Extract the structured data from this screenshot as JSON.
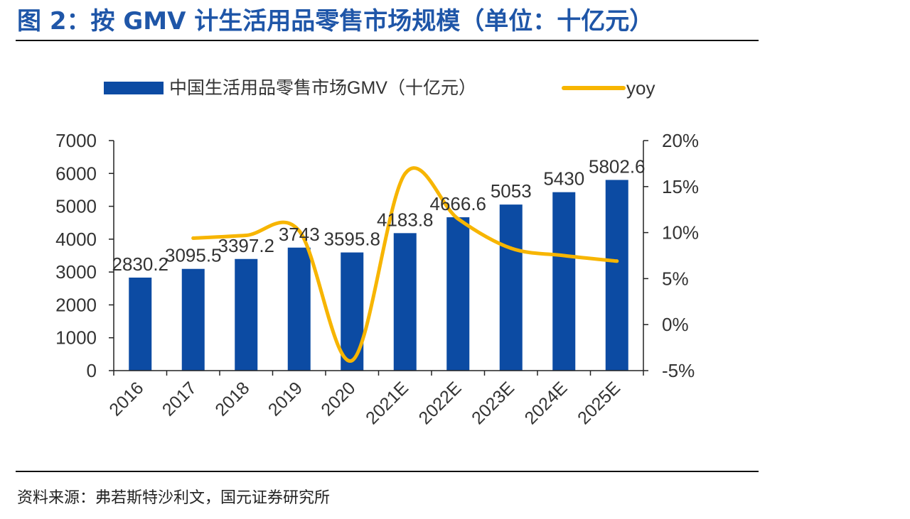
{
  "figure": {
    "title": "图 2：按 GMV 计生活用品零售市场规模（单位：十亿元）",
    "source": "资料来源：弗若斯特沙利文，国元证券研究所"
  },
  "colors": {
    "title": "#1f56a8",
    "bar": "#0c4ba3",
    "line": "#f7b500",
    "axis": "#222222"
  },
  "chart_data": {
    "type": "bar",
    "categories": [
      "2016",
      "2017",
      "2018",
      "2019",
      "2020",
      "2021E",
      "2022E",
      "2023E",
      "2024E",
      "2025E"
    ],
    "series": [
      {
        "name": "中国生活用品零售市场GMV（十亿元）",
        "type": "bar",
        "axis": "left",
        "values": [
          2830.2,
          3095.5,
          3397.2,
          3743,
          3595.8,
          4183.8,
          4666.6,
          5053,
          5430,
          5802.6
        ],
        "labels": [
          "2830.2",
          "3095.5",
          "3397.2",
          "3743",
          "3595.8",
          "4183.8",
          "4666.6",
          "5053",
          "5430",
          "5802.6"
        ]
      },
      {
        "name": "yoy",
        "type": "line",
        "axis": "right",
        "values": [
          null,
          9.4,
          9.7,
          10.2,
          -3.9,
          16.4,
          11.5,
          8.3,
          7.5,
          6.9
        ]
      }
    ],
    "y_left": {
      "min": 0,
      "max": 7000,
      "ticks": [
        0,
        1000,
        2000,
        3000,
        4000,
        5000,
        6000,
        7000
      ],
      "tick_labels": [
        "0",
        "1000",
        "2000",
        "3000",
        "4000",
        "5000",
        "6000",
        "7000"
      ]
    },
    "y_right": {
      "min": -5,
      "max": 20,
      "ticks": [
        -5,
        0,
        5,
        10,
        15,
        20
      ],
      "tick_labels": [
        "-5%",
        "0%",
        "5%",
        "10%",
        "15%",
        "20%"
      ]
    },
    "legend_position": "top",
    "grid": false
  }
}
